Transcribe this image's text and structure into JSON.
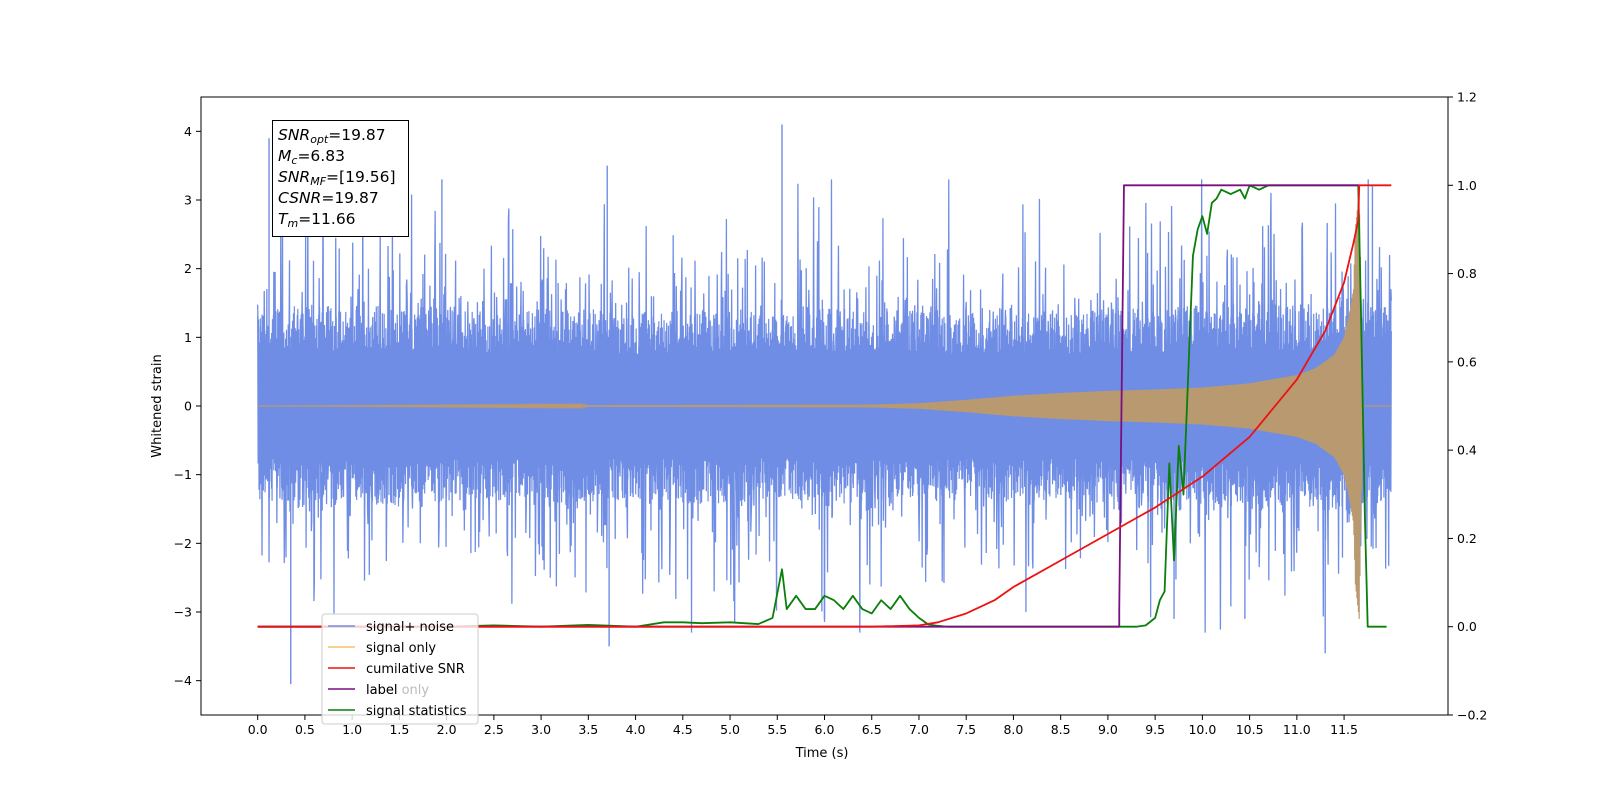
{
  "info_box": {
    "snr_opt": {
      "name": "SNR",
      "sub": "opt",
      "value": "=19.87"
    },
    "mc": {
      "name": "M",
      "sub": "c",
      "value": "=6.83"
    },
    "snr_mf": {
      "name": "SNR",
      "sub": "MF",
      "value": "=[19.56]"
    },
    "csnr": {
      "name": "CSNR",
      "sub": "",
      "value": "=19.87"
    },
    "tm": {
      "name": "T",
      "sub": "m",
      "value": "=11.66"
    }
  },
  "chart_data": {
    "type": "line",
    "xlabel": "Time (s)",
    "ylabel": "Whitened strain",
    "xlim": [
      -0.6,
      12.6
    ],
    "ylim": [
      -4.5,
      4.5
    ],
    "y2lim": [
      -0.2,
      1.2
    ],
    "x_ticks": [
      "0.0",
      "0.5",
      "1.0",
      "1.5",
      "2.0",
      "2.5",
      "3.0",
      "3.5",
      "4.0",
      "4.5",
      "5.0",
      "5.5",
      "6.0",
      "6.5",
      "7.0",
      "7.5",
      "8.0",
      "8.5",
      "9.0",
      "9.5",
      "10.0",
      "10.5",
      "11.0",
      "11.5"
    ],
    "y_ticks": [
      "4",
      "3",
      "2",
      "1",
      "0",
      "−1",
      "−2",
      "−3",
      "−4"
    ],
    "y2_ticks": [
      "1.2",
      "1.0",
      "0.8",
      "0.6",
      "0.4",
      "0.2",
      "0.0",
      "−0.2"
    ],
    "legend": [
      "signal+ noise",
      "signal only",
      "cumilative SNR",
      "label",
      "signal statistics"
    ],
    "legend_hidden_text": "label only",
    "legend_position": "lower-left",
    "colors": {
      "noise": "#6f8de5",
      "signal": "#f6c36a",
      "overlap": "#b9996f",
      "csnr": "#ee1111",
      "label": "#7a0f80",
      "stat": "#0a7f0a"
    },
    "series": [
      {
        "name": "signal+ noise",
        "axis": "left",
        "description_kind": "noise band",
        "t_range": [
          0.0,
          12.0
        ],
        "envelope_upper": [
          [
            0.0,
            2.2
          ],
          [
            0.5,
            2.4
          ],
          [
            1.0,
            2.3
          ],
          [
            1.5,
            2.4
          ],
          [
            2.0,
            2.3
          ],
          [
            2.5,
            2.2
          ],
          [
            3.0,
            2.3
          ],
          [
            3.5,
            2.3
          ],
          [
            4.0,
            2.2
          ],
          [
            4.5,
            2.3
          ],
          [
            5.0,
            2.3
          ],
          [
            5.5,
            2.2
          ],
          [
            6.0,
            2.3
          ],
          [
            6.5,
            2.3
          ],
          [
            7.0,
            2.3
          ],
          [
            7.5,
            2.2
          ],
          [
            8.0,
            2.3
          ],
          [
            8.5,
            2.2
          ],
          [
            9.0,
            2.3
          ],
          [
            9.5,
            2.3
          ],
          [
            10.0,
            2.4
          ],
          [
            10.5,
            2.5
          ],
          [
            11.0,
            2.3
          ],
          [
            11.5,
            2.6
          ],
          [
            12.0,
            2.3
          ]
        ],
        "peaks": [
          [
            0.12,
            3.9
          ],
          [
            0.35,
            -4.05
          ],
          [
            1.95,
            3.3
          ],
          [
            3.7,
            3.5
          ],
          [
            3.72,
            -3.5
          ],
          [
            5.55,
            4.1
          ],
          [
            6.0,
            -3.1
          ],
          [
            9.7,
            -3.1
          ],
          [
            10.45,
            -3.1
          ],
          [
            11.3,
            -3.6
          ],
          [
            11.8,
            3.2
          ]
        ]
      },
      {
        "name": "signal only",
        "axis": "left",
        "t": [
          0.0,
          6.5,
          7.0,
          7.5,
          8.0,
          8.5,
          9.0,
          9.5,
          10.0,
          10.5,
          11.0,
          11.2,
          11.4,
          11.5,
          11.55,
          11.6,
          11.62,
          11.66,
          11.7,
          12.0
        ],
        "amplitude": [
          0.0,
          0.02,
          0.04,
          0.09,
          0.15,
          0.19,
          0.22,
          0.24,
          0.27,
          0.33,
          0.45,
          0.55,
          0.75,
          1.0,
          1.3,
          1.7,
          2.6,
          3.1,
          0.0,
          0.0
        ]
      },
      {
        "name": "cumilative SNR",
        "axis": "right",
        "t": [
          0.0,
          6.5,
          7.0,
          7.2,
          7.5,
          7.8,
          8.0,
          8.5,
          9.0,
          9.5,
          10.0,
          10.5,
          11.0,
          11.3,
          11.5,
          11.6,
          11.65,
          11.66,
          12.0
        ],
        "values": [
          0.0,
          0.0,
          0.003,
          0.01,
          0.03,
          0.06,
          0.09,
          0.15,
          0.21,
          0.27,
          0.34,
          0.43,
          0.56,
          0.67,
          0.78,
          0.87,
          0.92,
          1.0,
          1.0
        ]
      },
      {
        "name": "label",
        "axis": "right",
        "t": [
          0.0,
          9.12,
          9.12,
          9.17,
          11.65,
          11.66
        ],
        "values": [
          0.0,
          0.0,
          0.04,
          1.0,
          1.0,
          1.0
        ]
      },
      {
        "name": "signal statistics",
        "axis": "right",
        "t": [
          0.0,
          2.0,
          2.5,
          3.0,
          3.5,
          4.0,
          4.3,
          4.5,
          4.7,
          5.0,
          5.3,
          5.45,
          5.55,
          5.6,
          5.7,
          5.8,
          5.9,
          6.0,
          6.1,
          6.2,
          6.3,
          6.4,
          6.5,
          6.6,
          6.7,
          6.8,
          6.9,
          7.0,
          7.1,
          7.2,
          7.3,
          7.5,
          7.7,
          8.0,
          8.5,
          9.0,
          9.3,
          9.4,
          9.5,
          9.55,
          9.6,
          9.65,
          9.7,
          9.75,
          9.8,
          9.85,
          9.9,
          9.95,
          10.0,
          10.05,
          10.1,
          10.15,
          10.2,
          10.3,
          10.4,
          10.45,
          10.5,
          10.6,
          10.7,
          11.0,
          11.5,
          11.65,
          11.68,
          11.72,
          11.75,
          11.8,
          11.95
        ],
        "values": [
          0.0,
          0.0,
          0.003,
          0.0,
          0.004,
          0.0,
          0.01,
          0.01,
          0.008,
          0.01,
          0.006,
          0.02,
          0.13,
          0.04,
          0.07,
          0.04,
          0.04,
          0.07,
          0.06,
          0.04,
          0.07,
          0.04,
          0.03,
          0.06,
          0.04,
          0.07,
          0.04,
          0.02,
          0.005,
          0.002,
          0.0,
          0.0,
          0.0,
          0.0,
          0.0,
          0.0,
          0.0,
          0.003,
          0.02,
          0.06,
          0.08,
          0.37,
          0.15,
          0.41,
          0.3,
          0.57,
          0.84,
          0.9,
          0.93,
          0.89,
          0.96,
          0.97,
          0.99,
          0.98,
          0.99,
          0.97,
          1.0,
          0.99,
          1.0,
          1.0,
          1.0,
          1.0,
          0.7,
          0.25,
          0.0,
          0.0,
          0.0
        ]
      }
    ]
  }
}
